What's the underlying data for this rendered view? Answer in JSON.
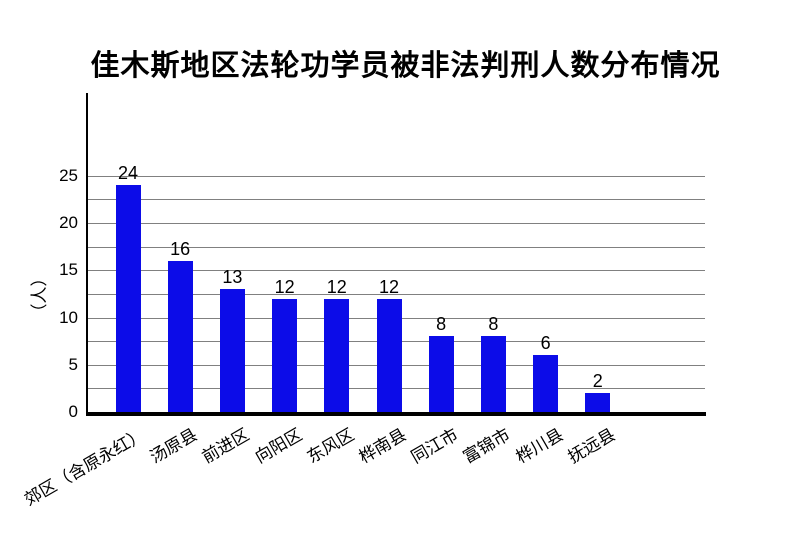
{
  "chart_data": {
    "type": "bar",
    "title": "佳木斯地区法轮功学员被非法判刑人数分布情况",
    "ylabel": "（人）",
    "xlabel": "",
    "categories": [
      "郊区（含原永红）",
      "汤原县",
      "前进区",
      "向阳区",
      "东风区",
      "桦南县",
      "同江市",
      "富锦市",
      "桦川县",
      "抚远县"
    ],
    "values": [
      24,
      16,
      13,
      12,
      12,
      12,
      8,
      8,
      6,
      2
    ],
    "data_labels_shown": true,
    "y_ticks": [
      0,
      5,
      10,
      15,
      20,
      25
    ],
    "minor_gridline_unit": 2.5,
    "gridline_top_value": 25,
    "ylim": [
      0,
      33.8
    ],
    "legend_position": "none",
    "grid": "horizontal-minor",
    "bar_color": "#0c0ce8",
    "gridline_color": "#808080",
    "axis_color": "#000000",
    "text_color": "#000000",
    "background_color": "#ffffff"
  }
}
